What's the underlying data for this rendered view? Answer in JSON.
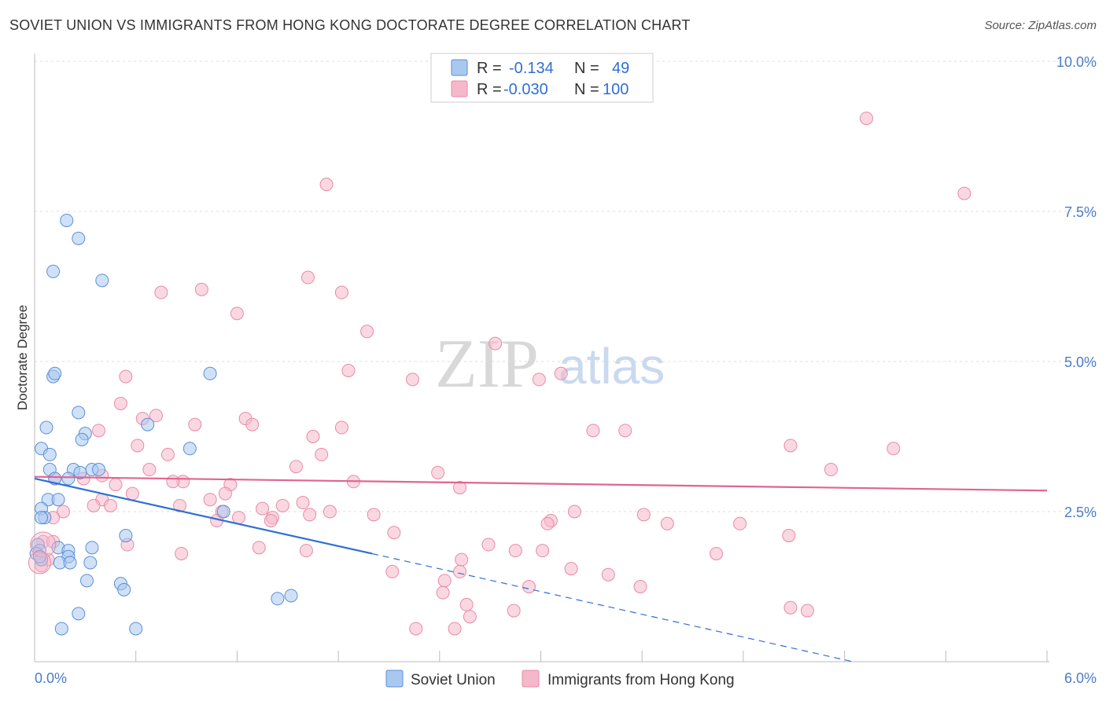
{
  "header": {
    "title": "SOVIET UNION VS IMMIGRANTS FROM HONG KONG DOCTORATE DEGREE CORRELATION CHART",
    "source": "Source: ZipAtlas.com"
  },
  "legend": {
    "rows": [
      {
        "r_label": "R =",
        "r_value": "-0.134",
        "n_label": "N =",
        "n_value": "49",
        "color": "#a9c8f0"
      },
      {
        "r_label": "R =",
        "r_value": "-0.030",
        "n_label": "N =",
        "n_value": "100",
        "color": "#f5b8cb"
      }
    ]
  },
  "watermark": {
    "zip": "ZIP",
    "atlas": "atlas"
  },
  "chart_data": {
    "type": "scatter",
    "title": "SOVIET UNION VS IMMIGRANTS FROM HONG KONG DOCTORATE DEGREE CORRELATION CHART",
    "ylabel": "Doctorate Degree",
    "xlabel": "",
    "xlim": [
      0,
      6
    ],
    "ylim": [
      0,
      10
    ],
    "x_tick_labels": [
      "0.0%",
      "6.0%"
    ],
    "y_tick_labels": [
      "2.5%",
      "5.0%",
      "7.5%",
      "10.0%"
    ],
    "y_ticks": [
      2.5,
      5.0,
      7.5,
      10.0
    ],
    "grid": true,
    "series": [
      {
        "name": "Soviet Union",
        "color": "#a9c8f0",
        "stroke": "#5a8fd6",
        "line_color": "#2e6fd4",
        "trend": {
          "x0": 0.0,
          "y0": 3.05,
          "x1": 2.0,
          "y1": 1.8,
          "dash_to_x": 4.85,
          "dash_to_y": 0.0
        },
        "points": [
          [
            0.19,
            7.35
          ],
          [
            0.26,
            7.05
          ],
          [
            0.11,
            6.5
          ],
          [
            0.4,
            6.35
          ],
          [
            0.11,
            4.75
          ],
          [
            0.12,
            4.8
          ],
          [
            1.04,
            4.8
          ],
          [
            0.26,
            4.15
          ],
          [
            0.07,
            3.9
          ],
          [
            0.67,
            3.95
          ],
          [
            0.3,
            3.8
          ],
          [
            0.28,
            3.7
          ],
          [
            0.04,
            3.55
          ],
          [
            0.09,
            3.45
          ],
          [
            0.92,
            3.55
          ],
          [
            0.09,
            3.2
          ],
          [
            0.34,
            3.2
          ],
          [
            0.38,
            3.2
          ],
          [
            0.23,
            3.2
          ],
          [
            0.12,
            3.05
          ],
          [
            0.2,
            3.05
          ],
          [
            0.27,
            3.15
          ],
          [
            0.08,
            2.7
          ],
          [
            0.14,
            2.7
          ],
          [
            0.04,
            2.55
          ],
          [
            0.06,
            2.4
          ],
          [
            0.04,
            2.4
          ],
          [
            1.12,
            2.5
          ],
          [
            0.54,
            2.1
          ],
          [
            0.02,
            1.95
          ],
          [
            0.03,
            1.85
          ],
          [
            0.14,
            1.9
          ],
          [
            0.2,
            1.85
          ],
          [
            0.34,
            1.9
          ],
          [
            0.01,
            1.8
          ],
          [
            0.04,
            1.7
          ],
          [
            0.2,
            1.75
          ],
          [
            0.15,
            1.65
          ],
          [
            0.21,
            1.65
          ],
          [
            0.33,
            1.65
          ],
          [
            0.31,
            1.35
          ],
          [
            0.51,
            1.3
          ],
          [
            0.53,
            1.2
          ],
          [
            1.44,
            1.05
          ],
          [
            1.52,
            1.1
          ],
          [
            0.26,
            0.8
          ],
          [
            0.16,
            0.55
          ],
          [
            0.6,
            0.55
          ],
          [
            0.03,
            1.75
          ]
        ]
      },
      {
        "name": "Immigrants from Hong Kong",
        "color": "#f5b8cb",
        "stroke": "#e88aa6",
        "line_color": "#e06490",
        "trend": {
          "x0": 0.0,
          "y0": 3.08,
          "x1": 6.0,
          "y1": 2.85
        },
        "points": [
          [
            4.93,
            9.05
          ],
          [
            1.73,
            7.95
          ],
          [
            5.51,
            7.8
          ],
          [
            1.62,
            6.4
          ],
          [
            0.75,
            6.15
          ],
          [
            0.99,
            6.2
          ],
          [
            1.82,
            6.15
          ],
          [
            1.2,
            5.8
          ],
          [
            1.97,
            5.5
          ],
          [
            2.73,
            5.3
          ],
          [
            1.86,
            4.85
          ],
          [
            2.24,
            4.7
          ],
          [
            3.12,
            4.8
          ],
          [
            2.99,
            4.7
          ],
          [
            0.54,
            4.75
          ],
          [
            0.51,
            4.3
          ],
          [
            0.64,
            4.05
          ],
          [
            0.72,
            4.1
          ],
          [
            1.25,
            4.05
          ],
          [
            1.29,
            3.95
          ],
          [
            0.95,
            3.95
          ],
          [
            1.82,
            3.9
          ],
          [
            0.38,
            3.85
          ],
          [
            3.31,
            3.85
          ],
          [
            3.5,
            3.85
          ],
          [
            1.65,
            3.75
          ],
          [
            0.61,
            3.6
          ],
          [
            0.79,
            3.45
          ],
          [
            1.7,
            3.45
          ],
          [
            4.48,
            3.6
          ],
          [
            5.09,
            3.55
          ],
          [
            1.55,
            3.25
          ],
          [
            0.68,
            3.2
          ],
          [
            2.39,
            3.15
          ],
          [
            4.72,
            3.2
          ],
          [
            0.4,
            3.1
          ],
          [
            0.12,
            3.05
          ],
          [
            0.29,
            3.05
          ],
          [
            0.88,
            3.0
          ],
          [
            0.82,
            3.0
          ],
          [
            1.16,
            2.95
          ],
          [
            1.89,
            3.0
          ],
          [
            2.52,
            2.9
          ],
          [
            0.48,
            2.95
          ],
          [
            0.58,
            2.8
          ],
          [
            1.13,
            2.8
          ],
          [
            0.4,
            2.7
          ],
          [
            0.35,
            2.6
          ],
          [
            0.45,
            2.6
          ],
          [
            0.86,
            2.6
          ],
          [
            1.04,
            2.7
          ],
          [
            1.35,
            2.55
          ],
          [
            1.47,
            2.6
          ],
          [
            1.59,
            2.65
          ],
          [
            0.17,
            2.5
          ],
          [
            1.11,
            2.5
          ],
          [
            1.41,
            2.4
          ],
          [
            1.21,
            2.4
          ],
          [
            1.4,
            2.35
          ],
          [
            1.75,
            2.5
          ],
          [
            1.63,
            2.45
          ],
          [
            2.01,
            2.45
          ],
          [
            0.11,
            2.4
          ],
          [
            3.2,
            2.5
          ],
          [
            3.61,
            2.45
          ],
          [
            3.06,
            2.35
          ],
          [
            3.04,
            2.3
          ],
          [
            1.08,
            2.35
          ],
          [
            3.75,
            2.3
          ],
          [
            4.18,
            2.3
          ],
          [
            2.13,
            2.15
          ],
          [
            4.47,
            2.1
          ],
          [
            0.05,
            2.0
          ],
          [
            0.11,
            2.0
          ],
          [
            0.55,
            1.95
          ],
          [
            2.69,
            1.95
          ],
          [
            1.33,
            1.9
          ],
          [
            2.85,
            1.85
          ],
          [
            1.61,
            1.85
          ],
          [
            2.53,
            1.7
          ],
          [
            3.01,
            1.85
          ],
          [
            0.87,
            1.8
          ],
          [
            4.04,
            1.8
          ],
          [
            0.08,
            1.7
          ],
          [
            0.04,
            1.6
          ],
          [
            2.12,
            1.5
          ],
          [
            2.52,
            1.5
          ],
          [
            3.18,
            1.55
          ],
          [
            3.4,
            1.45
          ],
          [
            2.43,
            1.35
          ],
          [
            2.93,
            1.25
          ],
          [
            3.59,
            1.25
          ],
          [
            2.42,
            1.15
          ],
          [
            2.56,
            0.95
          ],
          [
            2.58,
            0.75
          ],
          [
            2.84,
            0.85
          ],
          [
            4.48,
            0.9
          ],
          [
            4.58,
            0.85
          ],
          [
            2.26,
            0.55
          ],
          [
            2.49,
            0.55
          ]
        ]
      }
    ],
    "legend_labels": [
      "Soviet Union",
      "Immigrants from Hong Kong"
    ]
  }
}
